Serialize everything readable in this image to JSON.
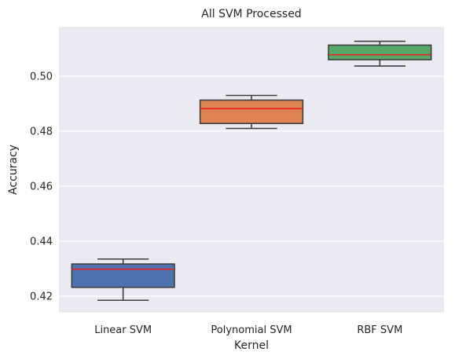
{
  "chart_data": {
    "type": "box",
    "title": "All SVM Processed",
    "xlabel": "Kernel",
    "ylabel": "Accuracy",
    "ylim": [
      0.414,
      0.518
    ],
    "yticks": [
      "0.42",
      "0.44",
      "0.46",
      "0.48",
      "0.50"
    ],
    "grid": true,
    "categories": [
      "Linear SVM",
      "Polynomial SVM",
      "RBF SVM"
    ],
    "boxes": [
      {
        "category": "Linear SVM",
        "whisker_low": 0.4185,
        "q1": 0.4232,
        "median": 0.4298,
        "q3": 0.4317,
        "whisker_high": 0.4335,
        "color": "#4c72b0"
      },
      {
        "category": "Polynomial SVM",
        "whisker_low": 0.481,
        "q1": 0.4828,
        "median": 0.4882,
        "q3": 0.4913,
        "whisker_high": 0.493,
        "color": "#dd8452"
      },
      {
        "category": "RBF SVM",
        "whisker_low": 0.5037,
        "q1": 0.506,
        "median": 0.5078,
        "q3": 0.5113,
        "whisker_high": 0.5127,
        "color": "#55a868"
      }
    ],
    "median_color": "#e8231f",
    "outline_color": "#3f3f3f",
    "background_color": "#eaeaf2"
  }
}
